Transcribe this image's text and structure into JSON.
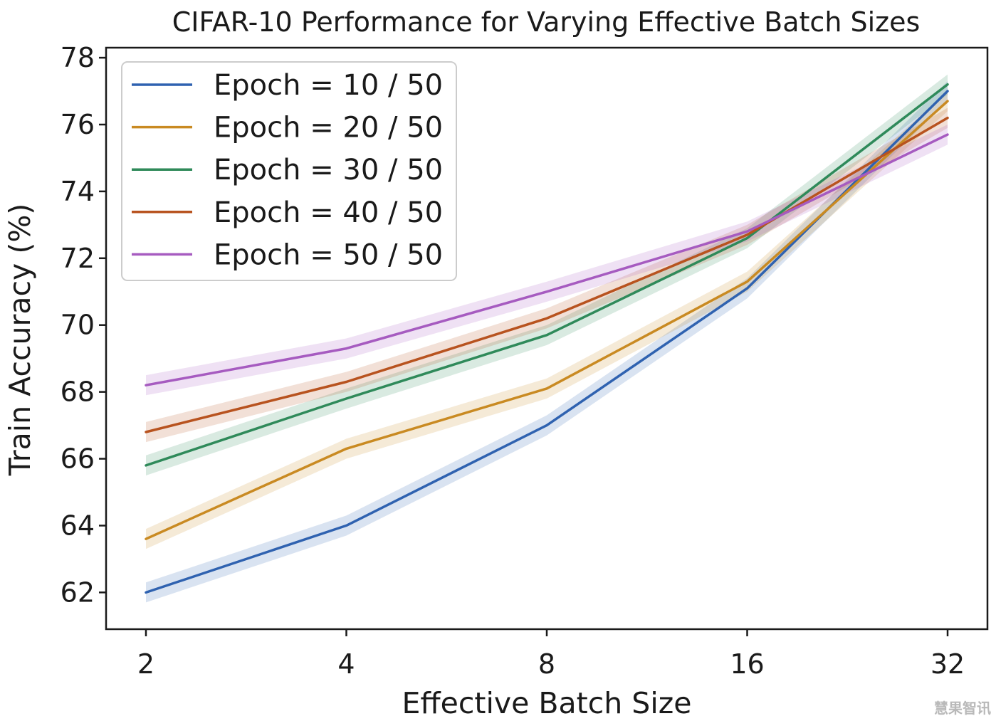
{
  "chart_data": {
    "type": "line",
    "title": "CIFAR-10 Performance for Varying Effective Batch Sizes",
    "xlabel": "Effective Batch Size",
    "ylabel": "Train Accuracy (%)",
    "x": [
      2,
      4,
      8,
      16,
      32
    ],
    "x_tick_labels": [
      "2",
      "4",
      "8",
      "16",
      "32"
    ],
    "x_scale": "log2",
    "y_ticks": [
      62,
      64,
      66,
      68,
      70,
      72,
      74,
      76,
      78
    ],
    "ylim": [
      60.9,
      78.3
    ],
    "grid": false,
    "legend_position": "upper-left",
    "band_half_width": 0.3,
    "series": [
      {
        "name": "Epoch = 10 / 50",
        "color": "#2f62b0",
        "values": [
          62.0,
          64.0,
          67.0,
          71.1,
          77.0
        ]
      },
      {
        "name": "Epoch = 20 / 50",
        "color": "#c98a22",
        "values": [
          63.6,
          66.3,
          68.1,
          71.3,
          76.7
        ]
      },
      {
        "name": "Epoch = 30 / 50",
        "color": "#2f8a5a",
        "values": [
          65.8,
          67.8,
          69.7,
          72.6,
          77.2
        ]
      },
      {
        "name": "Epoch = 40 / 50",
        "color": "#b8531f",
        "values": [
          66.8,
          68.3,
          70.2,
          72.7,
          76.2
        ]
      },
      {
        "name": "Epoch = 50 / 50",
        "color": "#a65bc0",
        "values": [
          68.2,
          69.3,
          71.0,
          72.8,
          75.7
        ]
      }
    ]
  },
  "watermark": {
    "text": "慧果智讯"
  }
}
